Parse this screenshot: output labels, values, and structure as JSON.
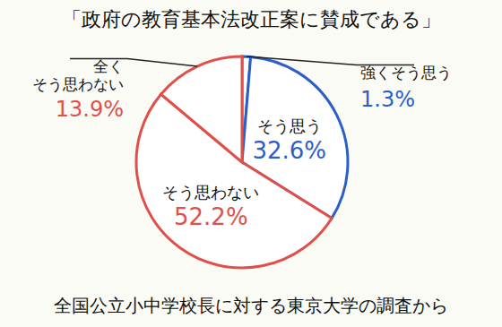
{
  "chart_data": {
    "type": "pie",
    "title": "「政府の教育基本法改正案に賛成である」",
    "categories": [
      "強くそう思う",
      "そう思う",
      "そう思わない",
      "全くそう思わない"
    ],
    "values": [
      1.3,
      32.6,
      52.2,
      13.9
    ],
    "value_labels": [
      "1.3%",
      "32.6%",
      "52.2%",
      "13.9%"
    ],
    "colors": [
      "#2a5fc8",
      "#2a5fc8",
      "#e0504a",
      "#e0504a"
    ],
    "data_labels": true,
    "annotations": [
      "全国公立小中学校長に対する東京大学の調査から"
    ]
  }
}
